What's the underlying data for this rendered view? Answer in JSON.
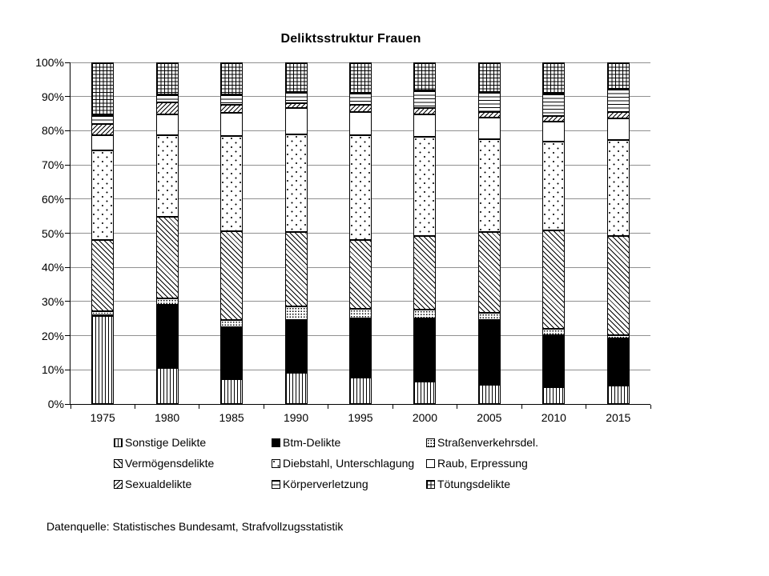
{
  "chart_data": {
    "type": "bar",
    "subtype": "stacked-100-percent-column",
    "title": "Deliktsstruktur Frauen",
    "source": "Datenquelle: Statistisches Bundesamt, Strafvollzugsstatistik",
    "categories": [
      "1975",
      "1980",
      "1985",
      "1990",
      "1995",
      "2000",
      "2005",
      "2010",
      "2015"
    ],
    "series": [
      {
        "name": "Sonstige Delikte",
        "pattern": "vlines",
        "values": [
          25.8,
          10.5,
          7.3,
          9.1,
          7.7,
          6.5,
          5.7,
          4.9,
          5.5
        ]
      },
      {
        "name": "Btm-Delikte",
        "pattern": "solid",
        "values": [
          0.3,
          18.6,
          15.2,
          15.6,
          17.3,
          18.5,
          18.9,
          15.2,
          13.6
        ]
      },
      {
        "name": "Straßenverkehrsdel.",
        "pattern": "dots-dense",
        "values": [
          1.0,
          1.9,
          2.1,
          3.9,
          2.9,
          2.7,
          2.1,
          2.0,
          1.0
        ]
      },
      {
        "name": "Vermögensdelikte",
        "pattern": "hatch-back",
        "values": [
          20.9,
          23.8,
          26.1,
          21.8,
          20.1,
          21.5,
          23.7,
          28.8,
          29.2
        ]
      },
      {
        "name": "Diebstahl, Unterschlagung",
        "pattern": "dots-sparse",
        "values": [
          26.3,
          24.0,
          27.7,
          28.5,
          30.6,
          29.0,
          27.2,
          25.9,
          27.9
        ]
      },
      {
        "name": "Raub, Erpressung",
        "pattern": "plain",
        "values": [
          4.4,
          6.0,
          6.8,
          7.7,
          7.0,
          6.6,
          6.2,
          5.9,
          6.4
        ]
      },
      {
        "name": "Sexualdelikte",
        "pattern": "hatch-fwd",
        "values": [
          3.3,
          3.4,
          2.3,
          1.4,
          1.9,
          1.9,
          1.8,
          1.7,
          1.8
        ]
      },
      {
        "name": "Körperverletzung",
        "pattern": "hlines",
        "values": [
          2.5,
          2.4,
          3.1,
          3.3,
          3.6,
          5.2,
          5.8,
          6.5,
          6.8
        ]
      },
      {
        "name": "Tötungsdelikte",
        "pattern": "grid",
        "values": [
          15.5,
          9.4,
          9.4,
          8.7,
          8.9,
          8.1,
          8.6,
          9.1,
          7.8
        ]
      }
    ],
    "y_ticks": [
      "0%",
      "10%",
      "20%",
      "30%",
      "40%",
      "50%",
      "60%",
      "70%",
      "80%",
      "90%",
      "100%"
    ],
    "ylim": [
      0,
      100
    ],
    "layout": {
      "grid": true,
      "legend_position": "bottom",
      "legend_columns": 3
    },
    "colors": {
      "foreground": "#000000",
      "background": "#ffffff",
      "gridline": "#909090"
    }
  }
}
